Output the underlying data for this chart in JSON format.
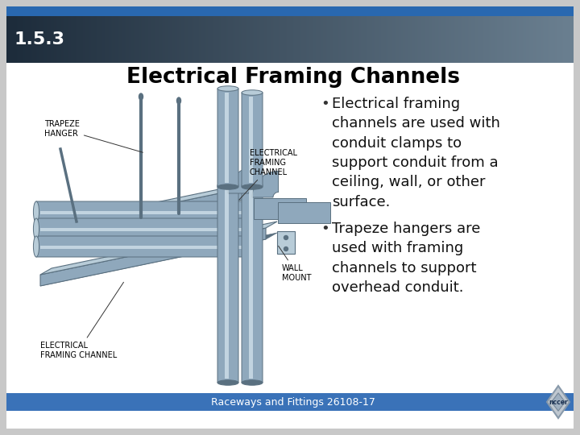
{
  "title": "Electrical Framing Channels",
  "section_number": "1.5.3",
  "bullet1_line1": "Electrical framing",
  "bullet1_line2": "channels are used with",
  "bullet1_line3": "conduit clamps to",
  "bullet1_line4": "support conduit from a",
  "bullet1_line5": "ceiling, wall, or other",
  "bullet1_line6": "surface.",
  "bullet2_line1": "Trapeze hangers are",
  "bullet2_line2": "used with framing",
  "bullet2_line3": "channels to support",
  "bullet2_line4": "overhead conduit.",
  "footer": "Raceways and Fittings 26108-17",
  "label_trapeze": "TRAPEZE\nHANGER",
  "label_elec_chan_top": "ELECTRICAL\nFRAMING\nCHANNEL",
  "label_wall_mount": "WALL\nMOUNT",
  "label_elec_chan_bot": "ELECTRICAL\nFRAMING CHANNEL",
  "header_bar_color": "#2968b0",
  "header_dark_left": "#1c2b3a",
  "header_dark_right": "#6a7f90",
  "slide_bg": "#ffffff",
  "outer_bg": "#c8c8c8",
  "footer_bg": "#3a72b8",
  "title_color": "#000000",
  "section_color": "#ffffff",
  "bullet_color": "#111111",
  "footer_color": "#ffffff",
  "diagram_bg": "#ffffff",
  "metal_mid": "#8fa8bc",
  "metal_dark": "#5a7080",
  "metal_light": "#b8ccd8",
  "metal_highlight": "#d8e8f0",
  "label_font_size": 7,
  "title_font_size": 19,
  "section_font_size": 16,
  "bullet_font_size": 13,
  "footer_font_size": 9
}
